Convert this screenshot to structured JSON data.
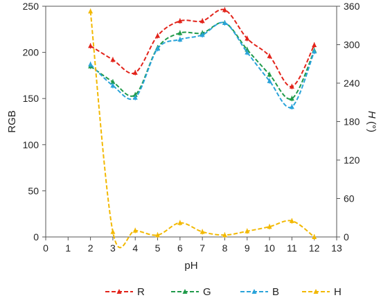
{
  "chart_data": {
    "type": "line",
    "xlabel": "pH",
    "ylabel": "RGB",
    "y2label_italic": "H",
    "y2label_unit": " (°)",
    "xlim": [
      0,
      13
    ],
    "xticks": [
      0,
      1,
      2,
      3,
      4,
      5,
      6,
      7,
      8,
      9,
      10,
      11,
      12,
      13
    ],
    "ylim": [
      0,
      250
    ],
    "yticks": [
      0,
      50,
      100,
      150,
      200,
      250
    ],
    "y2lim": [
      0,
      360
    ],
    "y2ticks": [
      0,
      60,
      120,
      180,
      240,
      300,
      360
    ],
    "grid": false,
    "legend_position": "bottom",
    "x": [
      2,
      3,
      4,
      5,
      6,
      7,
      8,
      9,
      10,
      11,
      12
    ],
    "series": [
      {
        "name": "R",
        "axis": "left",
        "color": "#e2231a",
        "values": [
          207,
          192,
          178,
          218,
          234,
          234,
          246,
          215,
          196,
          163,
          208
        ]
      },
      {
        "name": "G",
        "axis": "left",
        "color": "#1f9a4a",
        "values": [
          185,
          168,
          154,
          205,
          221,
          221,
          232,
          203,
          176,
          150,
          202
        ]
      },
      {
        "name": "B",
        "axis": "left",
        "color": "#2aa3d9",
        "values": [
          187,
          164,
          151,
          204,
          214,
          219,
          232,
          200,
          169,
          141,
          201
        ]
      },
      {
        "name": "H",
        "axis": "right",
        "color": "#f2b800",
        "values": [
          352,
          8,
          10,
          3,
          22,
          8,
          3,
          9,
          16,
          25,
          0
        ]
      }
    ]
  }
}
